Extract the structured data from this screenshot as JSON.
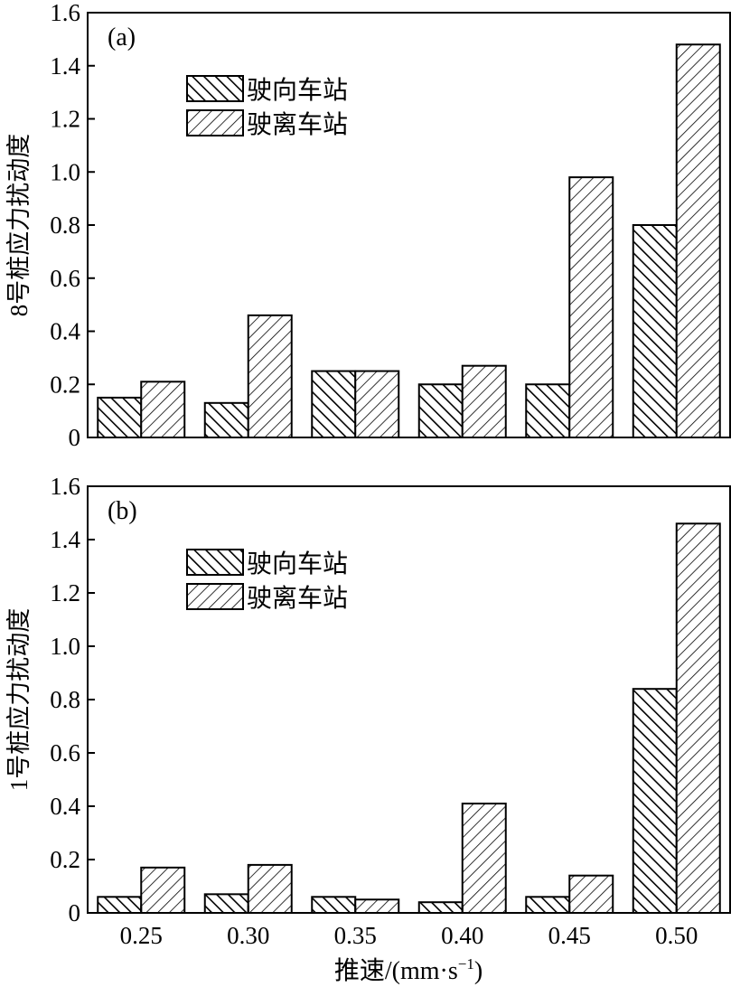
{
  "figure": {
    "xlabel": "推速/(mm·s",
    "xlabel_sup": "−1",
    "xlabel_close": ")"
  },
  "chart_data": [
    {
      "type": "bar",
      "panel_label": "(a)",
      "ylabel": "8号桩应力扰动度",
      "categories": [
        "0.25",
        "0.30",
        "0.35",
        "0.40",
        "0.45",
        "0.50"
      ],
      "ylim": [
        0,
        1.6
      ],
      "yticks": [
        "0",
        "0.2",
        "0.4",
        "0.6",
        "0.8",
        "1.0",
        "1.2",
        "1.4",
        "1.6"
      ],
      "legend_position": "upper-left",
      "series": [
        {
          "name": "驶向车站",
          "pattern": "backslash-hatch",
          "values": [
            0.15,
            0.13,
            0.25,
            0.2,
            0.2,
            0.8
          ]
        },
        {
          "name": "驶离车站",
          "pattern": "slash-hatch",
          "values": [
            0.21,
            0.46,
            0.25,
            0.27,
            0.98,
            1.48
          ]
        }
      ],
      "grid": false
    },
    {
      "type": "bar",
      "panel_label": "(b)",
      "ylabel": "1号桩应力扰动度",
      "categories": [
        "0.25",
        "0.30",
        "0.35",
        "0.40",
        "0.45",
        "0.50"
      ],
      "ylim": [
        0,
        1.6
      ],
      "yticks": [
        "0",
        "0.2",
        "0.4",
        "0.6",
        "0.8",
        "1.0",
        "1.2",
        "1.4",
        "1.6"
      ],
      "legend_position": "upper-left",
      "series": [
        {
          "name": "驶向车站",
          "pattern": "backslash-hatch",
          "values": [
            0.06,
            0.07,
            0.06,
            0.04,
            0.06,
            0.84
          ]
        },
        {
          "name": "驶离车站",
          "pattern": "slash-hatch",
          "values": [
            0.17,
            0.18,
            0.05,
            0.41,
            0.14,
            1.46
          ]
        }
      ],
      "grid": false
    }
  ]
}
